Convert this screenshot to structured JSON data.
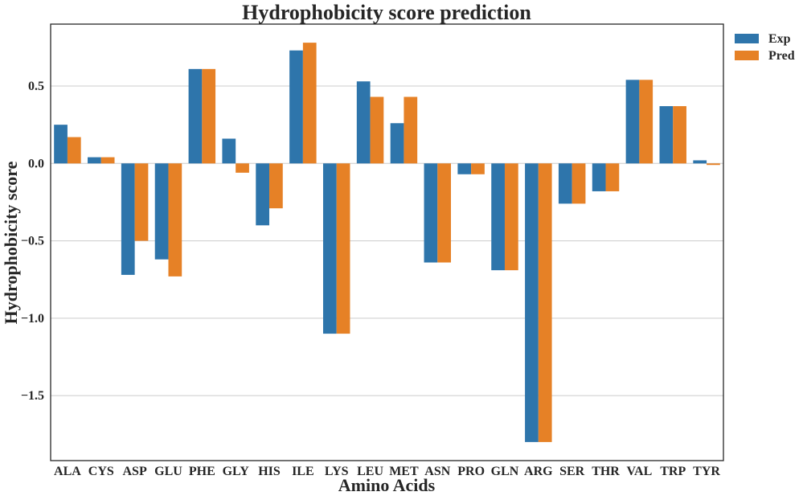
{
  "chart_data": {
    "type": "bar",
    "title": "Hydrophobicity score prediction",
    "xlabel": "Amino Acids",
    "ylabel": "Hydrophobicity score",
    "categories": [
      "ALA",
      "CYS",
      "ASP",
      "GLU",
      "PHE",
      "GLY",
      "HIS",
      "ILE",
      "LYS",
      "LEU",
      "MET",
      "ASN",
      "PRO",
      "GLN",
      "ARG",
      "SER",
      "THR",
      "VAL",
      "TRP",
      "TYR"
    ],
    "series": [
      {
        "name": "Exp",
        "color": "#2e75ab",
        "values": [
          0.25,
          0.04,
          -0.72,
          -0.62,
          0.61,
          0.16,
          -0.4,
          0.73,
          -1.1,
          0.53,
          0.26,
          -0.64,
          -0.07,
          -0.69,
          -1.8,
          -0.26,
          -0.18,
          0.54,
          0.37,
          0.02
        ]
      },
      {
        "name": "Pred",
        "color": "#e68126",
        "values": [
          0.17,
          0.04,
          -0.5,
          -0.73,
          0.61,
          -0.06,
          -0.29,
          0.78,
          -1.1,
          0.43,
          0.43,
          -0.64,
          -0.07,
          -0.69,
          -1.8,
          -0.26,
          -0.18,
          0.54,
          0.37,
          -0.01
        ]
      }
    ],
    "ylim": [
      -1.92,
      0.9
    ],
    "yticks": [
      0.5,
      0.0,
      -0.5,
      -1.0,
      -1.5
    ],
    "ytick_labels": [
      "0.5",
      "0.0",
      "−0.5",
      "−1.0",
      "−1.5"
    ],
    "grid": "horizontal",
    "legend_position": "outside-top-right"
  }
}
